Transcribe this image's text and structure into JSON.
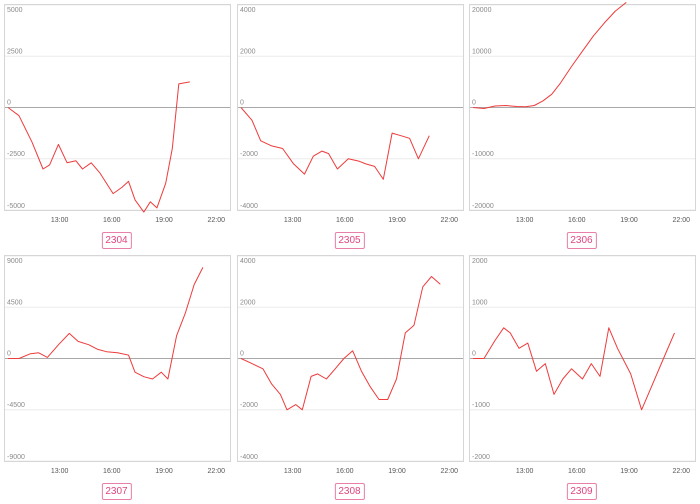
{
  "chart_data": [
    {
      "type": "line",
      "name": "2304",
      "ylim": [
        -5000,
        5000
      ],
      "yticks": [
        5000,
        2500,
        0,
        -2500,
        -5000
      ],
      "xlim": [
        0,
        1
      ],
      "xticks": [
        {
          "label": "13:00"
        },
        {
          "label": "16:00"
        },
        {
          "label": "19:00"
        },
        {
          "label": "22:00"
        }
      ],
      "series": [
        {
          "x": [
            0.0,
            0.05,
            0.11,
            0.16,
            0.19,
            0.23,
            0.27,
            0.31,
            0.34,
            0.38,
            0.42,
            0.48,
            0.52,
            0.55,
            0.58,
            0.62,
            0.65,
            0.68,
            0.72,
            0.75,
            0.78,
            0.83
          ],
          "y": [
            0,
            -400,
            -1700,
            -3000,
            -2800,
            -1800,
            -2700,
            -2600,
            -3000,
            -2700,
            -3200,
            -4200,
            -3900,
            -3600,
            -4500,
            -5100,
            -4600,
            -4900,
            -3700,
            -2000,
            1150,
            1250
          ]
        }
      ]
    },
    {
      "type": "line",
      "name": "2305",
      "ylim": [
        -4000,
        4000
      ],
      "yticks": [
        4000,
        2000,
        0,
        -2000,
        -4000
      ],
      "xlim": [
        0,
        1
      ],
      "xticks": [
        {
          "label": "13:00"
        },
        {
          "label": "16:00"
        },
        {
          "label": "19:00"
        },
        {
          "label": "22:00"
        }
      ],
      "series": [
        {
          "x": [
            0.0,
            0.05,
            0.09,
            0.14,
            0.19,
            0.24,
            0.29,
            0.33,
            0.37,
            0.4,
            0.44,
            0.49,
            0.54,
            0.57,
            0.61,
            0.65,
            0.69,
            0.73,
            0.77,
            0.81,
            0.86
          ],
          "y": [
            0,
            -500,
            -1300,
            -1500,
            -1600,
            -2200,
            -2600,
            -1900,
            -1700,
            -1800,
            -2400,
            -2000,
            -2100,
            -2200,
            -2300,
            -2800,
            -1000,
            -1100,
            -1200,
            -2000,
            -1100
          ]
        }
      ]
    },
    {
      "type": "line",
      "name": "2306",
      "ylim": [
        -20000,
        20000
      ],
      "yticks": [
        20000,
        10000,
        0,
        -10000,
        -20000
      ],
      "xlim": [
        0,
        1
      ],
      "xticks": [
        {
          "label": "13:00"
        },
        {
          "label": "16:00"
        },
        {
          "label": "19:00"
        },
        {
          "label": "22:00"
        }
      ],
      "series": [
        {
          "x": [
            0.0,
            0.05,
            0.1,
            0.15,
            0.2,
            0.24,
            0.28,
            0.32,
            0.36,
            0.4,
            0.45,
            0.5,
            0.55,
            0.6,
            0.65,
            0.7
          ],
          "y": [
            0,
            -200,
            300,
            400,
            200,
            150,
            400,
            1300,
            2600,
            4800,
            8000,
            11000,
            14000,
            16500,
            18800,
            20500
          ]
        }
      ]
    },
    {
      "type": "line",
      "name": "2307",
      "ylim": [
        -9000,
        9000
      ],
      "yticks": [
        9000,
        4500,
        0,
        -4500,
        -9000
      ],
      "xlim": [
        0,
        1
      ],
      "xticks": [
        {
          "label": "13:00"
        },
        {
          "label": "16:00"
        },
        {
          "label": "19:00"
        },
        {
          "label": "22:00"
        }
      ],
      "series": [
        {
          "x": [
            0.0,
            0.05,
            0.1,
            0.14,
            0.18,
            0.23,
            0.28,
            0.32,
            0.37,
            0.41,
            0.45,
            0.5,
            0.55,
            0.58,
            0.62,
            0.66,
            0.7,
            0.73,
            0.77,
            0.81,
            0.85,
            0.89
          ],
          "y": [
            0,
            0,
            400,
            500,
            100,
            1200,
            2200,
            1500,
            1200,
            800,
            600,
            500,
            300,
            -1200,
            -1600,
            -1800,
            -1200,
            -1800,
            2000,
            4000,
            6500,
            8000
          ]
        }
      ]
    },
    {
      "type": "line",
      "name": "2308",
      "ylim": [
        -4000,
        4000
      ],
      "yticks": [
        4000,
        2000,
        0,
        -2000,
        -4000
      ],
      "xlim": [
        0,
        1
      ],
      "xticks": [
        {
          "label": "13:00"
        },
        {
          "label": "16:00"
        },
        {
          "label": "19:00"
        },
        {
          "label": "22:00"
        }
      ],
      "series": [
        {
          "x": [
            0.0,
            0.05,
            0.1,
            0.14,
            0.18,
            0.21,
            0.25,
            0.28,
            0.32,
            0.35,
            0.39,
            0.43,
            0.47,
            0.51,
            0.55,
            0.59,
            0.63,
            0.67,
            0.71,
            0.75,
            0.79,
            0.83,
            0.87,
            0.91
          ],
          "y": [
            0,
            -200,
            -400,
            -1000,
            -1400,
            -2000,
            -1800,
            -2000,
            -700,
            -600,
            -800,
            -400,
            0,
            300,
            -500,
            -1100,
            -1600,
            -1600,
            -800,
            1000,
            1300,
            2800,
            3200,
            2900
          ]
        }
      ]
    },
    {
      "type": "line",
      "name": "2309",
      "ylim": [
        -2000,
        2000
      ],
      "yticks": [
        2000,
        1000,
        0,
        -1000,
        -2000
      ],
      "xlim": [
        0,
        1
      ],
      "xticks": [
        {
          "label": "13:00"
        },
        {
          "label": "16:00"
        },
        {
          "label": "19:00"
        },
        {
          "label": "22:00"
        }
      ],
      "series": [
        {
          "x": [
            0.0,
            0.05,
            0.1,
            0.14,
            0.17,
            0.21,
            0.25,
            0.29,
            0.33,
            0.37,
            0.41,
            0.45,
            0.5,
            0.54,
            0.58,
            0.62,
            0.66,
            0.72,
            0.77,
            0.82,
            0.87,
            0.92
          ],
          "y": [
            0,
            0,
            350,
            600,
            500,
            200,
            300,
            -250,
            -100,
            -700,
            -400,
            -200,
            -400,
            -100,
            -350,
            600,
            200,
            -300,
            -1000,
            -500,
            0,
            500
          ]
        }
      ]
    }
  ]
}
